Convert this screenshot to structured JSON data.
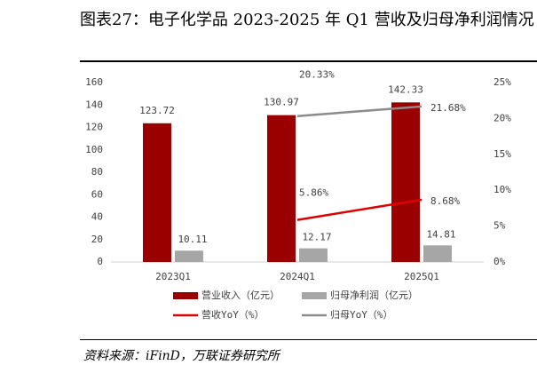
{
  "chart_data": {
    "type": "bar",
    "title": "图表27：电子化学品 2023-2025 年 Q1 营收及归母净利润情况",
    "source": "资料来源：iFinD，万联证券研究所",
    "categories": [
      "2023Q1",
      "2024Q1",
      "2025Q1"
    ],
    "ylim": [
      0,
      160
    ],
    "yticks": [
      0,
      20,
      40,
      60,
      80,
      100,
      120,
      140,
      160
    ],
    "y2lim": [
      0,
      25
    ],
    "y2ticks": [
      {
        "value": 0,
        "label": "0%"
      },
      {
        "value": 5,
        "label": "5%"
      },
      {
        "value": 10,
        "label": "10%"
      },
      {
        "value": 15,
        "label": "15%"
      },
      {
        "value": 20,
        "label": "20%"
      },
      {
        "value": 25,
        "label": "25%"
      }
    ],
    "series": [
      {
        "name": "营业收入（亿元）",
        "type": "bar",
        "color": "#9b0000",
        "values": [
          123.72,
          130.97,
          142.33
        ]
      },
      {
        "name": "归母净利润（亿元）",
        "type": "bar",
        "color": "#a6a6a6",
        "values": [
          10.11,
          12.17,
          14.81
        ]
      },
      {
        "name": "营收YoY（%）",
        "type": "line",
        "axis": "y2",
        "color": "#e00000",
        "values": [
          null,
          5.86,
          8.68
        ],
        "value_labels": [
          null,
          "5.86%",
          "8.68%"
        ]
      },
      {
        "name": "归母YoY（%）",
        "type": "line",
        "axis": "y2",
        "color": "#8c8c8c",
        "values": [
          null,
          20.33,
          21.68
        ],
        "value_labels": [
          null,
          "20.33%",
          "21.68%"
        ]
      }
    ]
  }
}
